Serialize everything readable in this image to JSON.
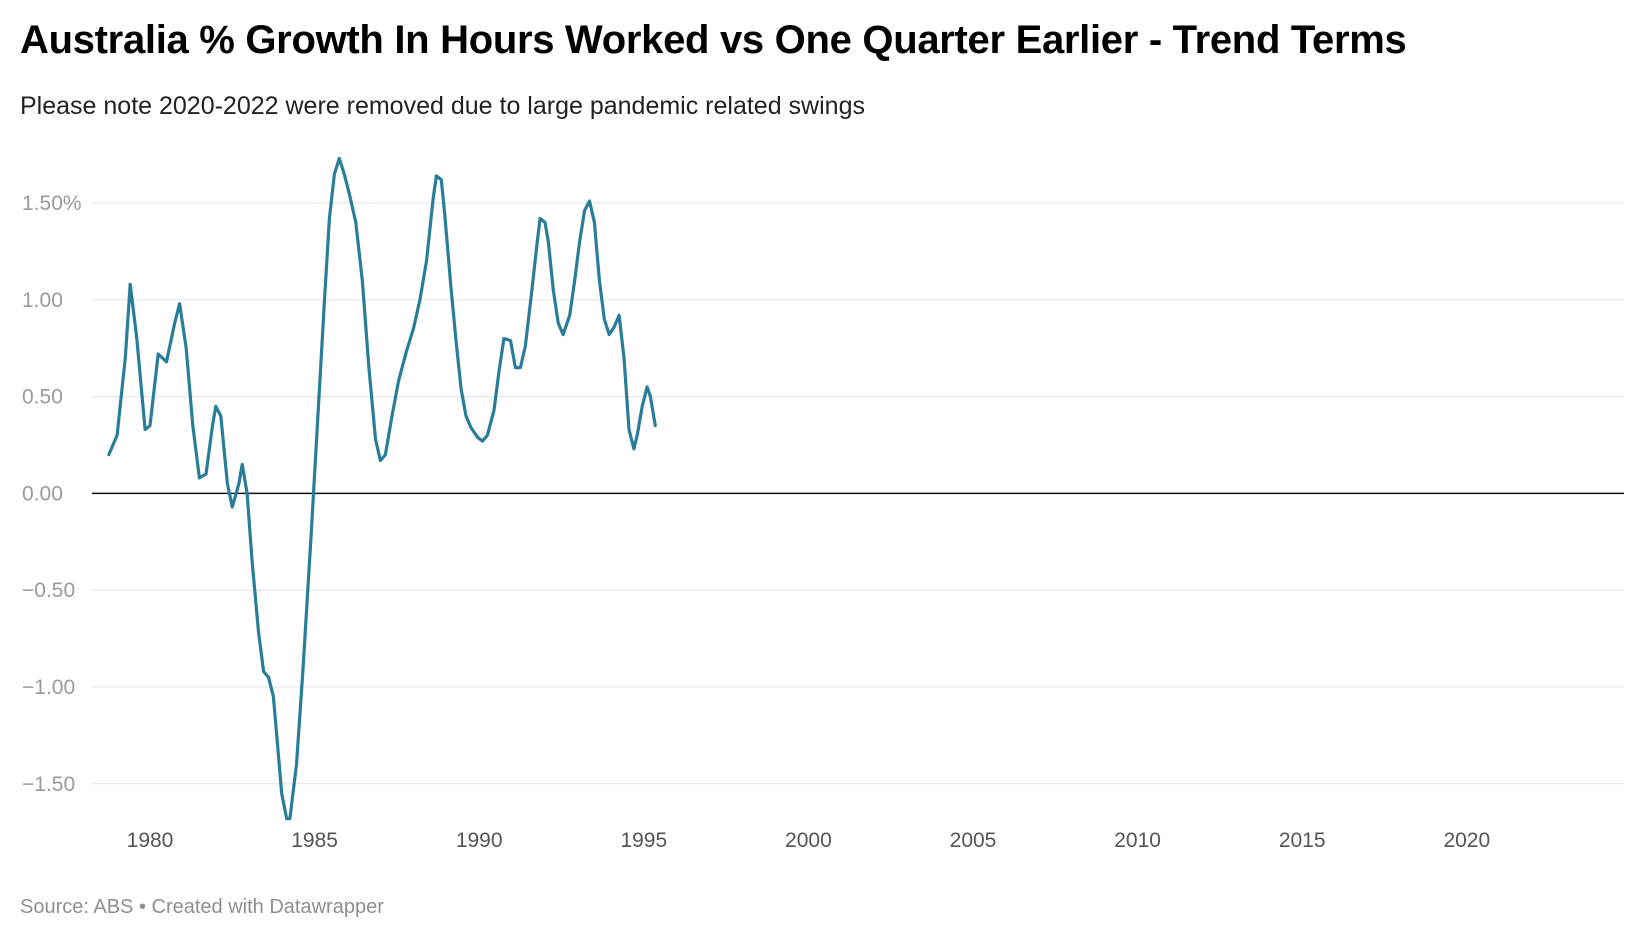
{
  "title": "Australia % Growth In Hours Worked vs One Quarter Earlier - Trend Terms",
  "subtitle": "Please note 2020-2022 were removed due to large pandemic related swings",
  "notes": "Source: ABS • Created with Datawrapper",
  "colors": {
    "line": "#2a7d99",
    "zero_line": "#111111",
    "grid": "#e3e3e3"
  },
  "chart_data": {
    "type": "line",
    "title": "Australia % Growth In Hours Worked vs One Quarter Earlier - Trend Terms",
    "subtitle": "Please note 2020-2022 were removed due to large pandemic related swings",
    "xlabel": "",
    "ylabel": "",
    "xlim": [
      1978.5,
      2024.6
    ],
    "ylim": [
      -1.7,
      1.75
    ],
    "grid": true,
    "y_ticks": [
      1.5,
      1.0,
      0.5,
      0.0,
      -0.5,
      -1.0,
      -1.5
    ],
    "y_tick_labels": [
      "1.50%",
      "1.00",
      "0.50",
      "0.00",
      "−0.50",
      "−1.00",
      "−1.50"
    ],
    "x_ticks": [
      1980,
      1985,
      1990,
      1995,
      2000,
      2005,
      2010,
      2015,
      2020
    ],
    "x_tick_labels": [
      "1980",
      "1985",
      "1990",
      "1995",
      "2000",
      "2005",
      "2010",
      "2015",
      "2020"
    ],
    "series": [
      {
        "color": "#2a7d99",
        "segments": [
          [
            [
              1978.75,
              0.2
            ],
            [
              1979.0,
              0.3
            ],
            [
              1979.25,
              0.7
            ],
            [
              1979.4,
              1.08
            ],
            [
              1979.6,
              0.8
            ],
            [
              1979.85,
              0.33
            ],
            [
              1980.0,
              0.35
            ],
            [
              1980.25,
              0.72
            ],
            [
              1980.5,
              0.68
            ],
            [
              1980.75,
              0.88
            ],
            [
              1980.9,
              0.98
            ],
            [
              1981.1,
              0.75
            ],
            [
              1981.3,
              0.35
            ],
            [
              1981.5,
              0.08
            ],
            [
              1981.7,
              0.1
            ],
            [
              1981.9,
              0.35
            ],
            [
              1982.0,
              0.45
            ],
            [
              1982.15,
              0.4
            ],
            [
              1982.35,
              0.05
            ],
            [
              1982.5,
              -0.07
            ],
            [
              1982.7,
              0.05
            ],
            [
              1982.8,
              0.15
            ],
            [
              1982.95,
              0.0
            ],
            [
              1983.1,
              -0.35
            ],
            [
              1983.3,
              -0.72
            ],
            [
              1983.45,
              -0.92
            ],
            [
              1983.6,
              -0.95
            ],
            [
              1983.75,
              -1.05
            ],
            [
              1983.9,
              -1.35
            ],
            [
              1984.0,
              -1.55
            ],
            [
              1984.15,
              -1.68
            ],
            [
              1984.25,
              -1.68
            ],
            [
              1984.45,
              -1.4
            ],
            [
              1984.65,
              -0.9
            ],
            [
              1984.9,
              -0.2
            ],
            [
              1985.1,
              0.4
            ],
            [
              1985.3,
              1.0
            ],
            [
              1985.45,
              1.42
            ],
            [
              1985.6,
              1.65
            ],
            [
              1985.75,
              1.73
            ],
            [
              1985.9,
              1.65
            ],
            [
              1986.05,
              1.55
            ],
            [
              1986.25,
              1.4
            ],
            [
              1986.45,
              1.1
            ],
            [
              1986.65,
              0.65
            ],
            [
              1986.85,
              0.28
            ],
            [
              1987.0,
              0.17
            ],
            [
              1987.15,
              0.2
            ],
            [
              1987.35,
              0.4
            ],
            [
              1987.55,
              0.58
            ],
            [
              1987.8,
              0.74
            ],
            [
              1988.0,
              0.85
            ],
            [
              1988.2,
              1.0
            ],
            [
              1988.4,
              1.2
            ],
            [
              1988.6,
              1.52
            ],
            [
              1988.7,
              1.64
            ],
            [
              1988.85,
              1.62
            ],
            [
              1988.95,
              1.45
            ],
            [
              1989.15,
              1.05
            ],
            [
              1989.3,
              0.78
            ],
            [
              1989.45,
              0.54
            ],
            [
              1989.6,
              0.4
            ],
            [
              1989.75,
              0.34
            ],
            [
              1989.95,
              0.29
            ],
            [
              1990.1,
              0.27
            ],
            [
              1990.25,
              0.3
            ],
            [
              1990.45,
              0.43
            ],
            [
              1990.6,
              0.63
            ],
            [
              1990.75,
              0.8
            ],
            [
              1990.95,
              0.79
            ],
            [
              1991.1,
              0.65
            ],
            [
              1991.25,
              0.65
            ],
            [
              1991.4,
              0.76
            ],
            [
              1991.6,
              1.05
            ],
            [
              1991.75,
              1.28
            ],
            [
              1991.85,
              1.42
            ],
            [
              1992.0,
              1.4
            ],
            [
              1992.1,
              1.3
            ],
            [
              1992.25,
              1.05
            ],
            [
              1992.4,
              0.88
            ],
            [
              1992.55,
              0.82
            ],
            [
              1992.75,
              0.92
            ],
            [
              1992.9,
              1.1
            ],
            [
              1993.05,
              1.3
            ],
            [
              1993.2,
              1.46
            ],
            [
              1993.35,
              1.51
            ],
            [
              1993.5,
              1.4
            ],
            [
              1993.65,
              1.1
            ],
            [
              1993.8,
              0.9
            ],
            [
              1993.95,
              0.82
            ],
            [
              1994.1,
              0.86
            ],
            [
              1994.25,
              0.92
            ],
            [
              1994.4,
              0.7
            ],
            [
              1994.55,
              0.33
            ],
            [
              1994.7,
              0.23
            ],
            [
              1994.8,
              0.3
            ],
            [
              1994.95,
              0.45
            ],
            [
              1995.1,
              0.55
            ],
            [
              1995.2,
              0.5
            ],
            [
              1995.35,
              0.35
            ]
          ]
        ]
      }
    ]
  }
}
